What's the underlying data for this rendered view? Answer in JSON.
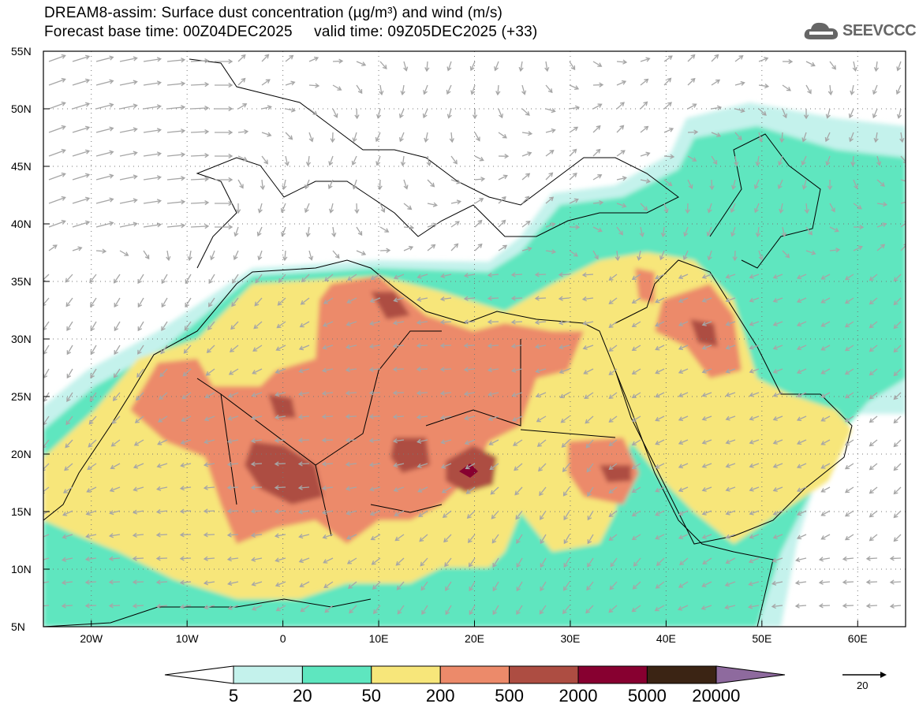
{
  "header": {
    "title": "DREAM8-assim: Surface dust concentration (µg/m³) and wind (m/s)",
    "subtitle": "Forecast base time: 00Z04DEC2025     valid time: 09Z05DEC2025 (+33)",
    "logo": "SEEVCCC"
  },
  "axes": {
    "lat_labels": [
      "55N",
      "50N",
      "45N",
      "40N",
      "35N",
      "30N",
      "25N",
      "20N",
      "15N",
      "10N",
      "5N"
    ],
    "lon_labels": [
      "20W",
      "10W",
      "0",
      "10E",
      "20E",
      "30E",
      "40E",
      "50E",
      "60E"
    ],
    "lon_range": [
      -25,
      65
    ],
    "lat_range": [
      5,
      55
    ]
  },
  "colorbar": {
    "labels": [
      "5",
      "20",
      "50",
      "200",
      "500",
      "2000",
      "5000",
      "20000"
    ],
    "colors": [
      "#c4f2ec",
      "#5ee6bf",
      "#f7e67a",
      "#ec8a6a",
      "#ad4d42",
      "#870030",
      "#3b2414"
    ],
    "over_color": "#8e6a9e",
    "under_color": "#ffffff"
  },
  "wind_reference": {
    "label": "20"
  }
}
